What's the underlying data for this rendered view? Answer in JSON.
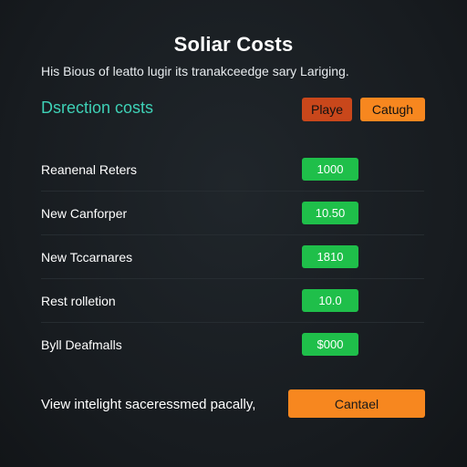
{
  "header": {
    "title": "Soliar Costs",
    "subtitle": "His Bious of leatto lugir its tranakceedge sary Lariging."
  },
  "section": {
    "heading": "Dsrection costs",
    "buttons": [
      {
        "label": "Playe"
      },
      {
        "label": "Catugh"
      }
    ]
  },
  "rows": [
    {
      "label": "Reanenal Reters",
      "value": "1000"
    },
    {
      "label": "New Canforper",
      "value": "10.50"
    },
    {
      "label": "New Tccarnares",
      "value": "1810"
    },
    {
      "label": "Rest rolletion",
      "value": "10.0"
    },
    {
      "label": "Byll Deafmalls",
      "value": "$000"
    }
  ],
  "footer": {
    "text": "View intelight saceressmed pacally,",
    "button_label": "Cantael"
  },
  "colors": {
    "background": "#1a1e22",
    "heading_teal": "#3ed1b6",
    "button_dark_orange": "#c9471b",
    "button_orange": "#f7871f",
    "value_green": "#1fbf4a"
  }
}
